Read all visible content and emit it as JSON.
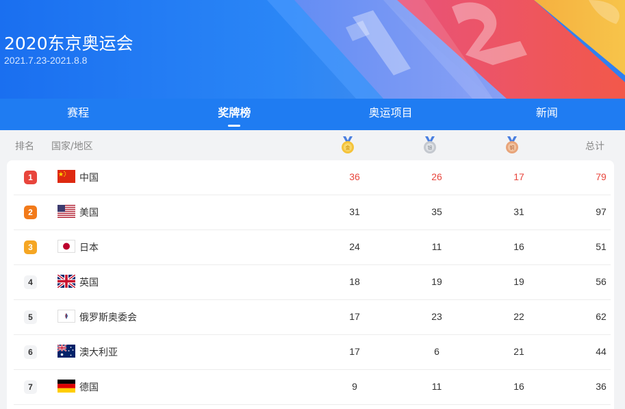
{
  "header": {
    "title": "2020东京奥运会",
    "dates": "2021.7.23-2021.8.8"
  },
  "nav": {
    "tabs": [
      {
        "label": "赛程"
      },
      {
        "label": "奖牌榜",
        "active": true
      },
      {
        "label": "奥运项目"
      },
      {
        "label": "新闻"
      }
    ]
  },
  "columns": {
    "rank": "排名",
    "country": "国家/地区",
    "gold_icon": "gold-medal-icon",
    "silver_icon": "silver-medal-icon",
    "bronze_icon": "bronze-medal-icon",
    "total": "总计"
  },
  "colors": {
    "brand": "#1f7cf2",
    "highlight": "#e8453c",
    "rank1": "#e8453c",
    "rank2": "#f27a1a",
    "rank3": "#f5a623"
  },
  "rows": [
    {
      "rank": "1",
      "country": "中国",
      "flag": "china-flag-icon",
      "gold": "36",
      "silver": "26",
      "bronze": "17",
      "total": "79"
    },
    {
      "rank": "2",
      "country": "美国",
      "flag": "usa-flag-icon",
      "gold": "31",
      "silver": "35",
      "bronze": "31",
      "total": "97"
    },
    {
      "rank": "3",
      "country": "日本",
      "flag": "japan-flag-icon",
      "gold": "24",
      "silver": "11",
      "bronze": "16",
      "total": "51"
    },
    {
      "rank": "4",
      "country": "英国",
      "flag": "uk-flag-icon",
      "gold": "18",
      "silver": "19",
      "bronze": "19",
      "total": "56"
    },
    {
      "rank": "5",
      "country": "俄罗斯奥委会",
      "flag": "roc-flag-icon",
      "gold": "17",
      "silver": "23",
      "bronze": "22",
      "total": "62"
    },
    {
      "rank": "6",
      "country": "澳大利亚",
      "flag": "australia-flag-icon",
      "gold": "17",
      "silver": "6",
      "bronze": "21",
      "total": "44"
    },
    {
      "rank": "7",
      "country": "德国",
      "flag": "germany-flag-icon",
      "gold": "9",
      "silver": "11",
      "bronze": "16",
      "total": "36"
    }
  ]
}
